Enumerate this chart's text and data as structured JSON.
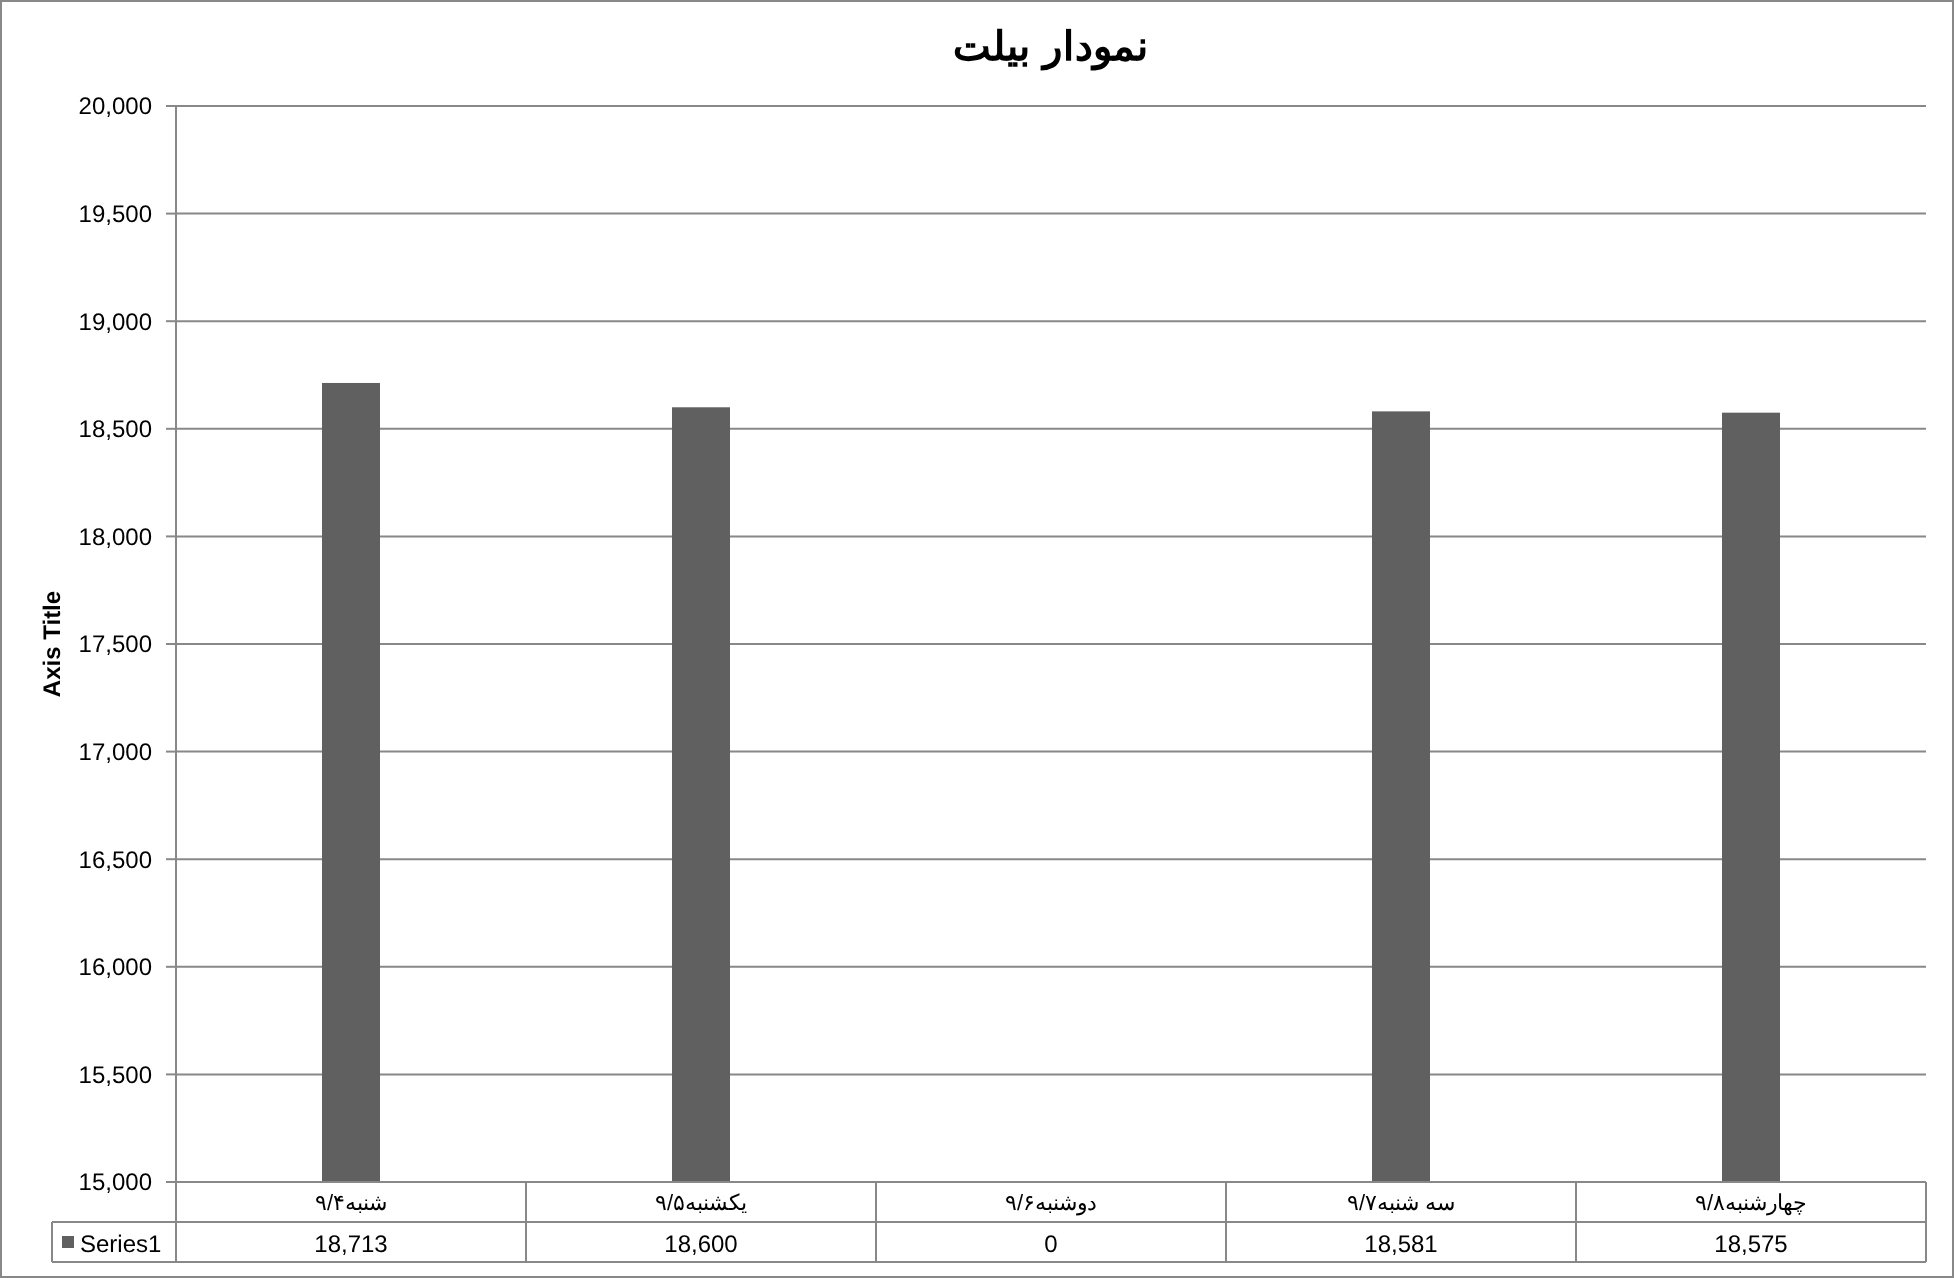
{
  "chart_data": {
    "type": "bar",
    "title": "نمودار بیلت",
    "ylabel": "Axis Title",
    "categories": [
      "شنبه۹/۴",
      "یکشنبه۹/۵",
      "دوشنبه۹/۶",
      "سه شنبه۹/۷",
      "چهارشنبه۹/۸"
    ],
    "series": [
      {
        "name": "Series1",
        "color": "#606060",
        "values": [
          18713,
          18600,
          null,
          18581,
          18575
        ],
        "value_labels": [
          "18,713",
          "18,600",
          "0",
          "18,581",
          "18,575"
        ]
      }
    ],
    "ylim": [
      15000,
      20000
    ],
    "yticks": [
      {
        "value": 15000,
        "label": "15,000"
      },
      {
        "value": 15500,
        "label": "15,500"
      },
      {
        "value": 16000,
        "label": "16,000"
      },
      {
        "value": 16500,
        "label": "16,500"
      },
      {
        "value": 17000,
        "label": "17,000"
      },
      {
        "value": 17500,
        "label": "17,500"
      },
      {
        "value": 18000,
        "label": "18,000"
      },
      {
        "value": 18500,
        "label": "18,500"
      },
      {
        "value": 19000,
        "label": "19,000"
      },
      {
        "value": 19500,
        "label": "19,500"
      },
      {
        "value": 20000,
        "label": "20,000"
      }
    ],
    "grid": "y"
  }
}
